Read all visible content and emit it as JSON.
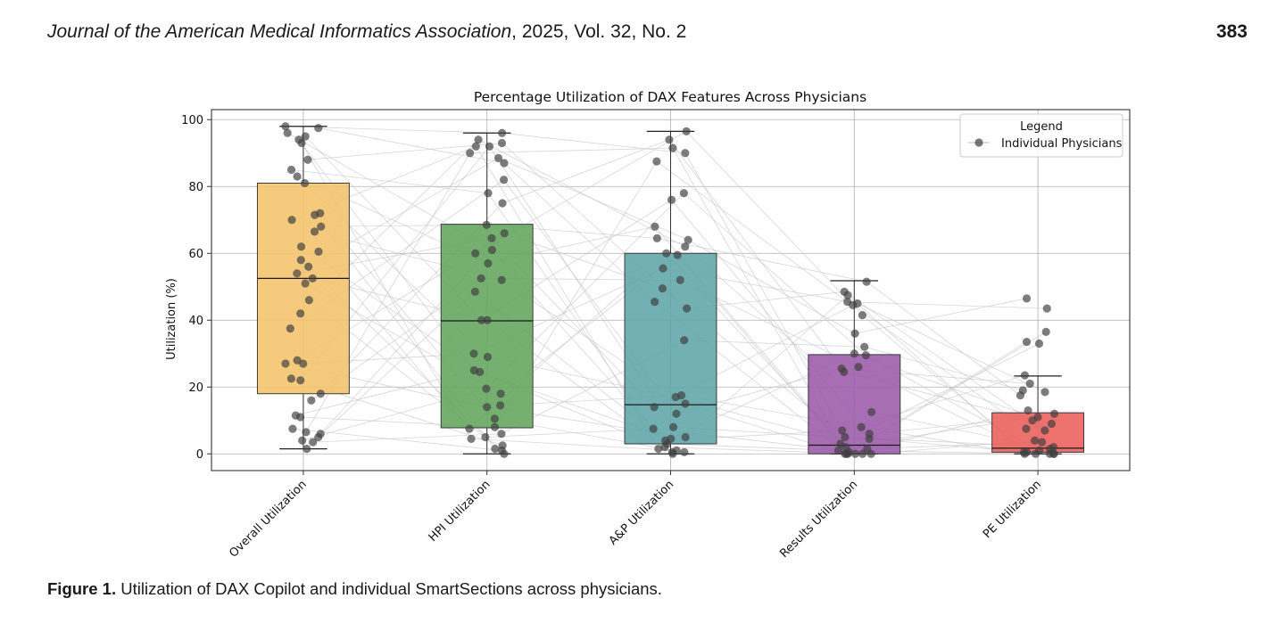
{
  "header": {
    "journal_name": "Journal of the American Medical Informatics Association",
    "journal_details": ", 2025, Vol. 32, No. 2",
    "page_number": "383"
  },
  "caption": {
    "label": "Figure 1.",
    "text": " Utilization of DAX Copilot and individual SmartSections across physicians."
  },
  "chart_data": {
    "type": "box",
    "title": "Percentage Utilization of DAX Features Across Physicians",
    "ylabel": "Utilization (%)",
    "xlabel": "",
    "ylim": [
      -5,
      103
    ],
    "yticks": [
      0,
      20,
      40,
      60,
      80,
      100
    ],
    "grid": true,
    "legend": {
      "title": "Legend",
      "entries": [
        "Individual Physicians"
      ],
      "placement": "top-right"
    },
    "categories": [
      "Overall Utilization",
      "HPI Utilization",
      "A&P Utilization",
      "Results Utilization",
      "PE Utilization"
    ],
    "colors": [
      "#f5c36b",
      "#62a55c",
      "#5fa5a8",
      "#9b5aaa",
      "#ea5e5a"
    ],
    "boxes": [
      {
        "q1": 18,
        "median": 52.5,
        "q3": 81,
        "whisker_low": 1.5,
        "whisker_high": 98
      },
      {
        "q1": 7.8,
        "median": 39.8,
        "q3": 68.7,
        "whisker_low": 0,
        "whisker_high": 96
      },
      {
        "q1": 3,
        "median": 14.7,
        "q3": 60,
        "whisker_low": 0,
        "whisker_high": 96.5
      },
      {
        "q1": 0,
        "median": 2.6,
        "q3": 29.7,
        "whisker_low": 0,
        "whisker_high": 51.8
      },
      {
        "q1": 0.5,
        "median": 1.7,
        "q3": 12.3,
        "whisker_low": 0,
        "whisker_high": 23.3
      }
    ],
    "points": [
      [
        98,
        97.5,
        96,
        95,
        94,
        93,
        88,
        85,
        83,
        81,
        72,
        71.5,
        70,
        68,
        66.5,
        62,
        60.5,
        58,
        56,
        54,
        52.5,
        51,
        46,
        42,
        37.5,
        28,
        27,
        27,
        22.5,
        22,
        18,
        16,
        11.5,
        11,
        7.5,
        6.5,
        6,
        5,
        4,
        3.5,
        1.5
      ],
      [
        96,
        94,
        93,
        92,
        92,
        90,
        88.5,
        87,
        82,
        78,
        75,
        68.5,
        66,
        64.5,
        61,
        60,
        57,
        52.5,
        52,
        48.5,
        40,
        40,
        30,
        29,
        25,
        24.5,
        19.5,
        18,
        14.5,
        14,
        10.5,
        8,
        7.5,
        6,
        5,
        4.5,
        2.5,
        1.5,
        1,
        0
      ],
      [
        96.5,
        94,
        91.5,
        90,
        87.5,
        78,
        76,
        68,
        64.5,
        64,
        62,
        60,
        59.5,
        55.5,
        52,
        49.5,
        45.5,
        43.5,
        34,
        17.5,
        17,
        15,
        14,
        12,
        8,
        7.5,
        5,
        4.5,
        4,
        3,
        2,
        1.5,
        1,
        0.5,
        0.5,
        0
      ],
      [
        51.5,
        48.5,
        47.5,
        45.5,
        45,
        44.5,
        41.5,
        36,
        32,
        30,
        29.5,
        26,
        25.5,
        24.5,
        12.5,
        8,
        7,
        6,
        5,
        4.5,
        3,
        2,
        1.5,
        1,
        0.5,
        0,
        0,
        0,
        0,
        0,
        0
      ],
      [
        46.5,
        43.5,
        36.5,
        33.5,
        33,
        23.5,
        21,
        19,
        18.5,
        17.5,
        13,
        12,
        11,
        10,
        9,
        7.5,
        7,
        4,
        3.5,
        2,
        1.5,
        1,
        0.5,
        0.5,
        0,
        0,
        0,
        0,
        0
      ]
    ]
  }
}
